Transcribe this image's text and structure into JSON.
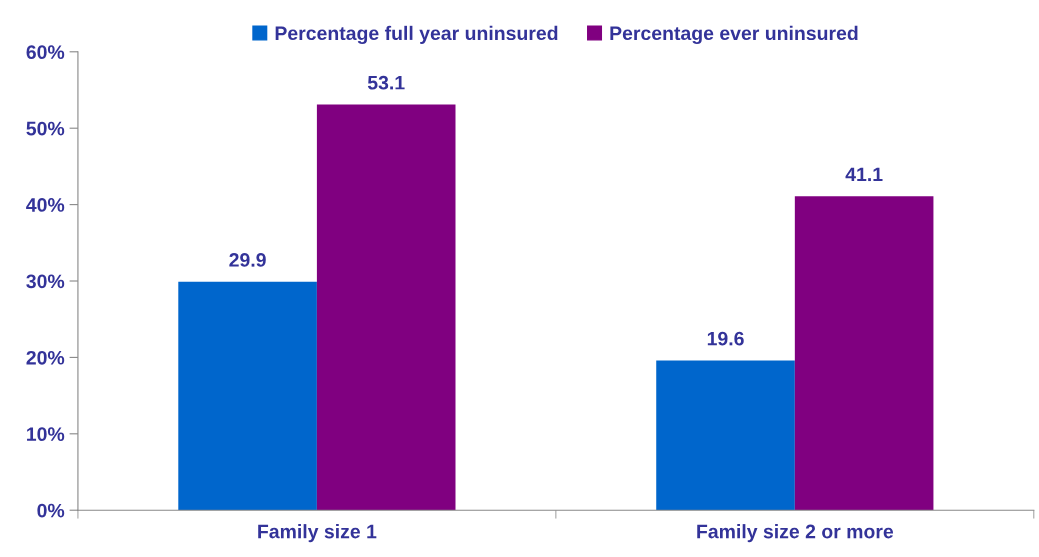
{
  "chart_data": {
    "type": "bar",
    "categories": [
      "Family size 1",
      "Family size 2 or more"
    ],
    "series": [
      {
        "name": "Percentage full year uninsured",
        "color": "#0066cc",
        "values": [
          29.9,
          19.6
        ]
      },
      {
        "name": "Percentage ever uninsured",
        "color": "#800080",
        "values": [
          53.1,
          41.1
        ]
      }
    ],
    "ylim": [
      0,
      60
    ],
    "yticks": [
      {
        "value": 0,
        "label": "0%"
      },
      {
        "value": 10,
        "label": "10%"
      },
      {
        "value": 20,
        "label": "20%"
      },
      {
        "value": 30,
        "label": "30%"
      },
      {
        "value": 40,
        "label": "40%"
      },
      {
        "value": 50,
        "label": "50%"
      },
      {
        "value": 60,
        "label": "60%"
      }
    ],
    "data_labels": true,
    "grid": false,
    "legend": "top"
  }
}
